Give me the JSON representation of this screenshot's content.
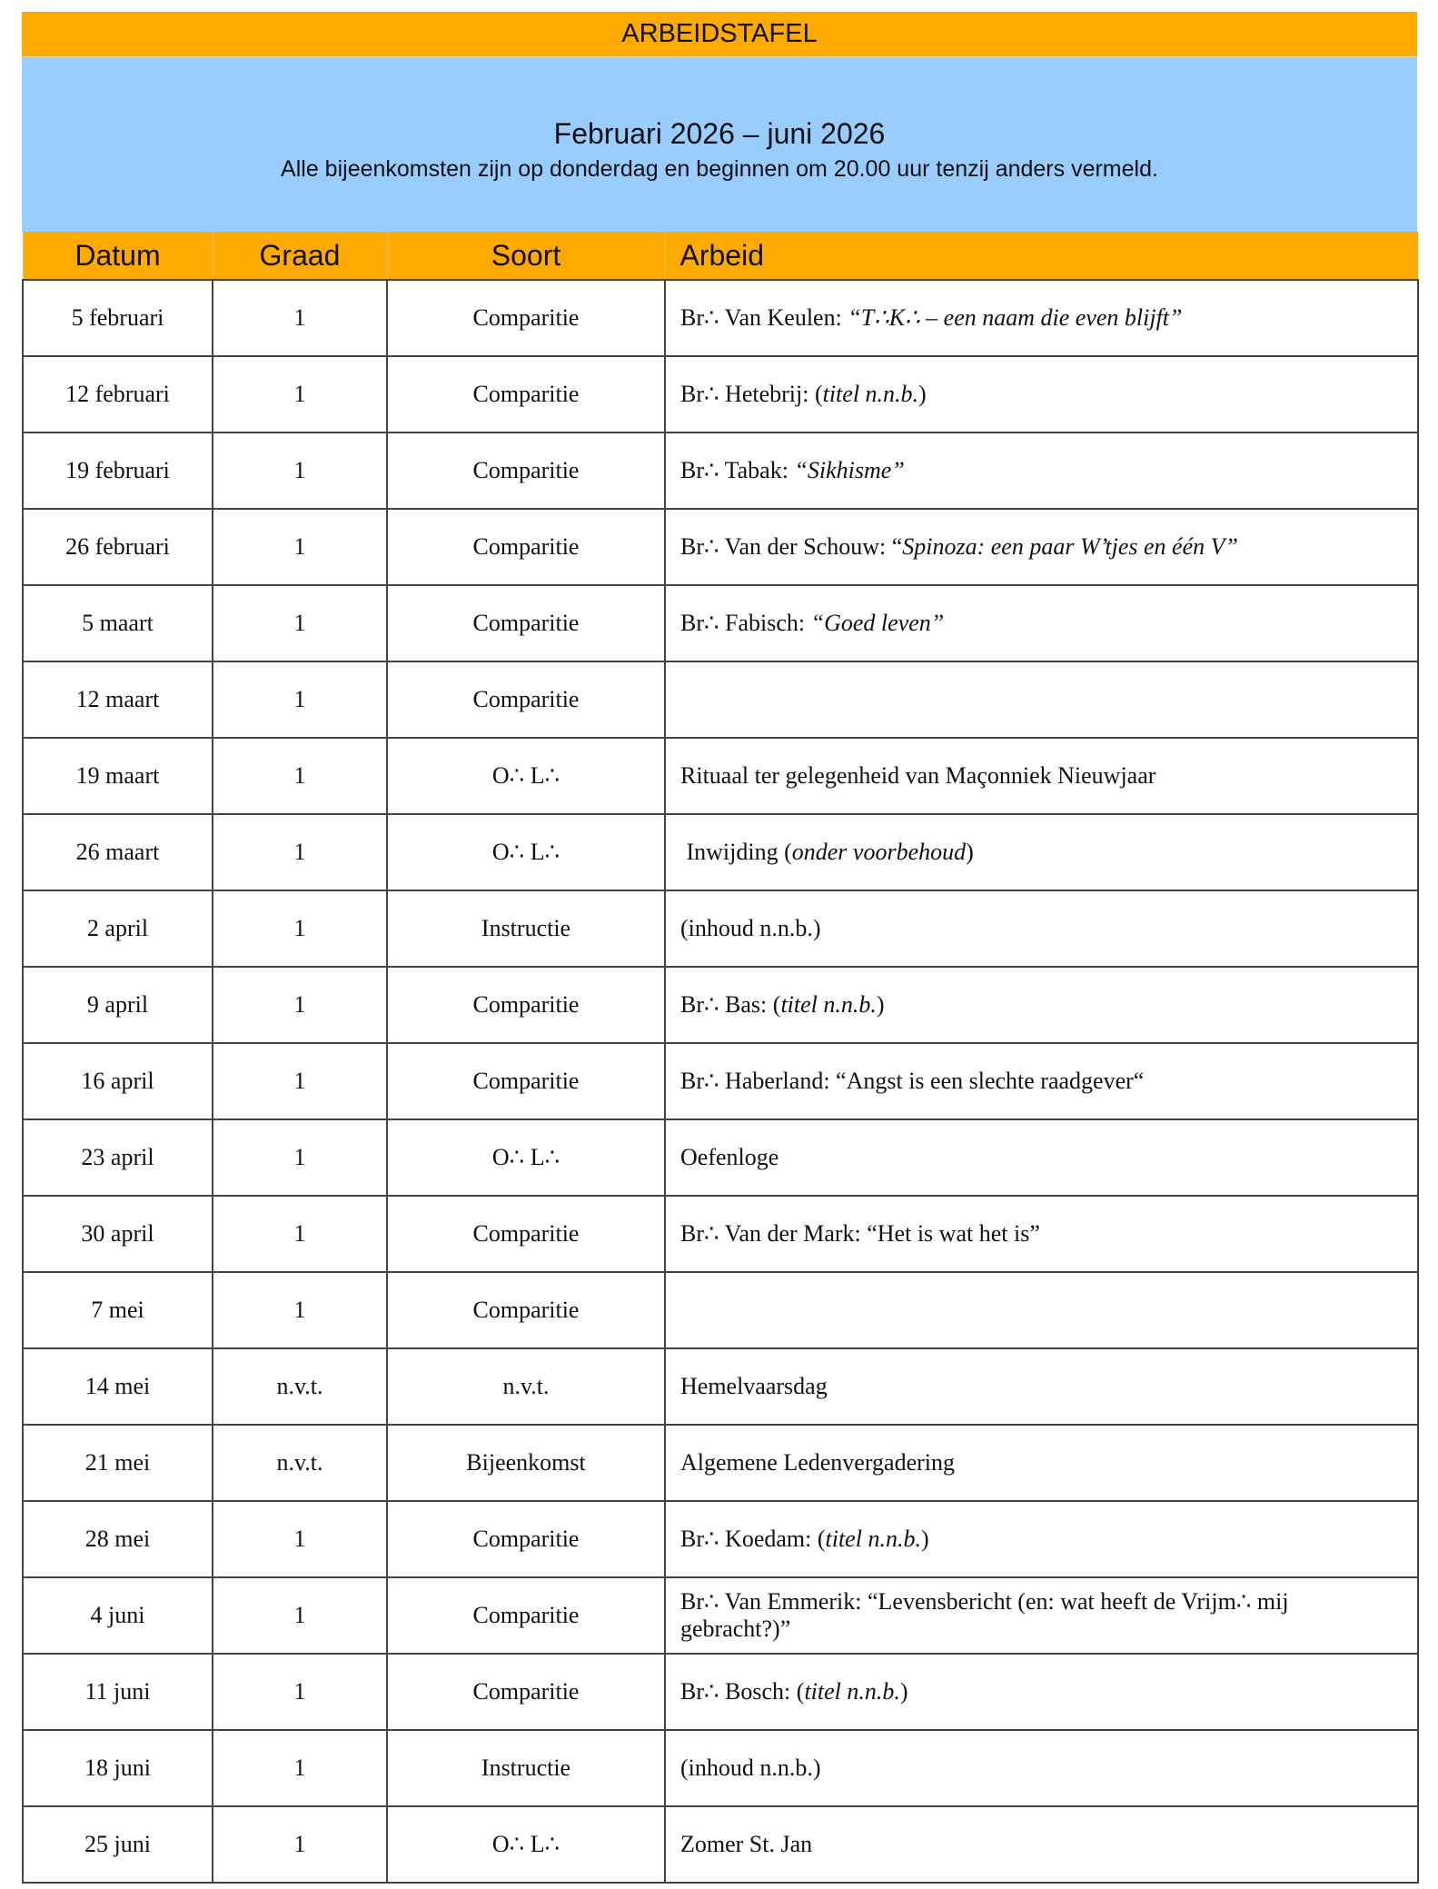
{
  "title": "ARBEIDSTAFEL",
  "subtitle": "Februari 2026 – juni 2026",
  "note": "Alle bijeenkomsten zijn op donderdag en beginnen om 20.00 uur tenzij anders vermeld.",
  "colors": {
    "header_orange": "#FFAA00",
    "banner_blue": "#99CCFF"
  },
  "columns": [
    "Datum",
    "Graad",
    "Soort",
    "Arbeid"
  ],
  "rows": [
    {
      "datum": "5 februari",
      "graad": "1",
      "soort": "Comparitie",
      "arbeid": [
        {
          "t": "Br∴ Van Keulen: ",
          "i": false
        },
        {
          "t": "“T∴K∴ – een naam die even blijft”",
          "i": true
        }
      ]
    },
    {
      "datum": "12 februari",
      "graad": "1",
      "soort": "Comparitie",
      "arbeid": [
        {
          "t": "Br∴ Hetebrij: (",
          "i": false
        },
        {
          "t": "titel n.n.b.",
          "i": true
        },
        {
          "t": ")",
          "i": false
        }
      ]
    },
    {
      "datum": "19 februari",
      "graad": "1",
      "soort": "Comparitie",
      "arbeid": [
        {
          "t": "Br∴ Tabak: ",
          "i": false
        },
        {
          "t": "“Sikhisme”",
          "i": true
        }
      ]
    },
    {
      "datum": "26 februari",
      "graad": "1",
      "soort": "Comparitie",
      "arbeid": [
        {
          "t": "Br∴ Van der Schouw: “",
          "i": false
        },
        {
          "t": "Spinoza: een paar W’tjes en één V”",
          "i": true
        }
      ]
    },
    {
      "datum": "5 maart",
      "graad": "1",
      "soort": "Comparitie",
      "arbeid": [
        {
          "t": "Br∴ Fabisch: ",
          "i": false
        },
        {
          "t": "“Goed leven”",
          "i": true
        }
      ]
    },
    {
      "datum": "12 maart",
      "graad": "1",
      "soort": "Comparitie",
      "arbeid": []
    },
    {
      "datum": "19 maart",
      "graad": "1",
      "soort": "O∴ L∴",
      "arbeid": [
        {
          "t": "Rituaal ter gelegenheid van Maçonniek Nieuwjaar",
          "i": false
        }
      ]
    },
    {
      "datum": "26 maart",
      "graad": "1",
      "soort": "O∴ L∴",
      "arbeid": [
        {
          "t": " Inwijding (",
          "i": false
        },
        {
          "t": "onder voorbehoud",
          "i": true
        },
        {
          "t": ")",
          "i": false
        }
      ]
    },
    {
      "datum": "2 april",
      "graad": "1",
      "soort": "Instructie",
      "arbeid": [
        {
          "t": "(inhoud n.n.b.)",
          "i": false
        }
      ]
    },
    {
      "datum": "9 april",
      "graad": "1",
      "soort": "Comparitie",
      "arbeid": [
        {
          "t": "Br∴ Bas: (",
          "i": false
        },
        {
          "t": "titel n.n.b.",
          "i": true
        },
        {
          "t": ")",
          "i": false
        }
      ]
    },
    {
      "datum": "16 april",
      "graad": "1",
      "soort": "Comparitie",
      "arbeid": [
        {
          "t": "Br∴ Haberland: “Angst is een slechte raadgever“",
          "i": false
        }
      ]
    },
    {
      "datum": "23 april",
      "graad": "1",
      "soort": "O∴ L∴",
      "arbeid": [
        {
          "t": "Oefenloge",
          "i": false
        }
      ]
    },
    {
      "datum": "30 april",
      "graad": "1",
      "soort": "Comparitie",
      "arbeid": [
        {
          "t": "Br∴ Van der Mark: “Het is wat het is”",
          "i": false
        }
      ]
    },
    {
      "datum": "7 mei",
      "graad": "1",
      "soort": "Comparitie",
      "arbeid": []
    },
    {
      "datum": "14 mei",
      "graad": "n.v.t.",
      "soort": "n.v.t.",
      "arbeid": [
        {
          "t": "Hemelvaarsdag",
          "i": false
        }
      ]
    },
    {
      "datum": "21 mei",
      "graad": "n.v.t.",
      "soort": "Bijeenkomst",
      "arbeid": [
        {
          "t": "Algemene Ledenvergadering",
          "i": false
        }
      ]
    },
    {
      "datum": "28 mei",
      "graad": "1",
      "soort": "Comparitie",
      "arbeid": [
        {
          "t": "Br∴ Koedam: (",
          "i": false
        },
        {
          "t": "titel n.n.b.",
          "i": true
        },
        {
          "t": ")",
          "i": false
        }
      ]
    },
    {
      "datum": "4 juni",
      "graad": "1",
      "soort": "Comparitie",
      "arbeid": [
        {
          "t": "Br∴ Van Emmerik: “Levensbericht (en: wat heeft de Vrijm∴ mij gebracht?)”",
          "i": false
        }
      ]
    },
    {
      "datum": "11 juni",
      "graad": "1",
      "soort": "Comparitie",
      "arbeid": [
        {
          "t": "Br∴ Bosch: (",
          "i": false
        },
        {
          "t": "titel n.n.b.",
          "i": true
        },
        {
          "t": ")",
          "i": false
        }
      ]
    },
    {
      "datum": "18 juni",
      "graad": "1",
      "soort": "Instructie",
      "arbeid": [
        {
          "t": "(inhoud n.n.b.)",
          "i": false
        }
      ]
    },
    {
      "datum": "25 juni",
      "graad": "1",
      "soort": "O∴ L∴",
      "arbeid": [
        {
          "t": "Zomer St. Jan",
          "i": false
        }
      ]
    }
  ]
}
